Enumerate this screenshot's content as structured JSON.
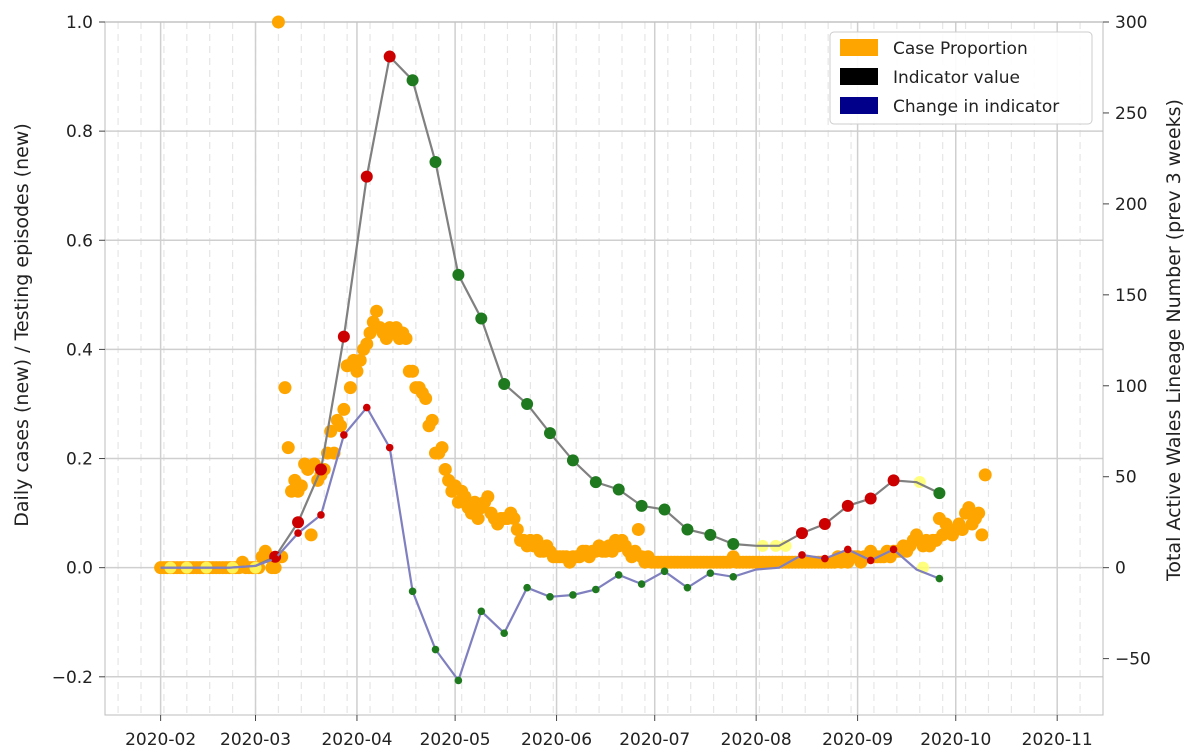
{
  "chart_data": {
    "type": "line",
    "ylabel_left": "Daily cases (new) / Testing episodes (new)",
    "ylabel_right": "Total Active Wales Lineage Number (prev 3 weeks)",
    "x_ticks": [
      "2020-02",
      "2020-03",
      "2020-04",
      "2020-05",
      "2020-06",
      "2020-07",
      "2020-08",
      "2020-09",
      "2020-10",
      "2020-11"
    ],
    "xlim": [
      "2020-01-15",
      "2020-11-15"
    ],
    "y_left_ticks": [
      "−0.2",
      "0.0",
      "0.2",
      "0.4",
      "0.6",
      "0.8",
      "1.0"
    ],
    "y_left_lim": [
      -0.27,
      1.0
    ],
    "y_right_ticks": [
      "−50",
      "0",
      "50",
      "100",
      "150",
      "200",
      "250",
      "300"
    ],
    "y_right_lim": [
      -81,
      300
    ],
    "grid": true,
    "legend_position": "top-right",
    "legend": [
      {
        "label": "Case Proportion",
        "color": "#ffa500"
      },
      {
        "label": "Indicator value",
        "color": "#000000"
      },
      {
        "label": "Change in indicator",
        "color": "#00008b"
      }
    ],
    "colors": {
      "case": "#ffa500",
      "yellow": "#ffff66",
      "indicator_line": "#808080",
      "change_line": "#8080c0",
      "red": "#cc0000",
      "green": "#1f7a1f",
      "grid": "#cfcfcf",
      "minor_grid": "#e6e6e6"
    },
    "case_proportion": [
      [
        "2020-02-01",
        0
      ],
      [
        "2020-02-02",
        0
      ],
      [
        "2020-02-03",
        0
      ],
      [
        "2020-02-04",
        0
      ],
      [
        "2020-02-05",
        0
      ],
      [
        "2020-02-06",
        0
      ],
      [
        "2020-02-07",
        0
      ],
      [
        "2020-02-08",
        0
      ],
      [
        "2020-02-09",
        0
      ],
      [
        "2020-02-10",
        0
      ],
      [
        "2020-02-11",
        0
      ],
      [
        "2020-02-12",
        0
      ],
      [
        "2020-02-13",
        0
      ],
      [
        "2020-02-14",
        0
      ],
      [
        "2020-02-15",
        0
      ],
      [
        "2020-02-16",
        0
      ],
      [
        "2020-02-17",
        0
      ],
      [
        "2020-02-18",
        0
      ],
      [
        "2020-02-19",
        0
      ],
      [
        "2020-02-20",
        0
      ],
      [
        "2020-02-21",
        0
      ],
      [
        "2020-02-22",
        0
      ],
      [
        "2020-02-23",
        0
      ],
      [
        "2020-02-24",
        0
      ],
      [
        "2020-02-25",
        0
      ],
      [
        "2020-02-26",
        0.01
      ],
      [
        "2020-02-27",
        0
      ],
      [
        "2020-02-28",
        0
      ],
      [
        "2020-02-29",
        0
      ],
      [
        "2020-03-01",
        0
      ],
      [
        "2020-03-02",
        0
      ],
      [
        "2020-03-03",
        0.02
      ],
      [
        "2020-03-04",
        0.03
      ],
      [
        "2020-03-05",
        0.02
      ],
      [
        "2020-03-06",
        0
      ],
      [
        "2020-03-07",
        0
      ],
      [
        "2020-03-08",
        1.0
      ],
      [
        "2020-03-09",
        0.02
      ],
      [
        "2020-03-10",
        0.33
      ],
      [
        "2020-03-11",
        0.22
      ],
      [
        "2020-03-12",
        0.14
      ],
      [
        "2020-03-13",
        0.16
      ],
      [
        "2020-03-14",
        0.14
      ],
      [
        "2020-03-15",
        0.15
      ],
      [
        "2020-03-16",
        0.19
      ],
      [
        "2020-03-17",
        0.18
      ],
      [
        "2020-03-18",
        0.06
      ],
      [
        "2020-03-19",
        0.19
      ],
      [
        "2020-03-20",
        0.16
      ],
      [
        "2020-03-21",
        0.17
      ],
      [
        "2020-03-22",
        0.18
      ],
      [
        "2020-03-23",
        0.21
      ],
      [
        "2020-03-24",
        0.25
      ],
      [
        "2020-03-25",
        0.21
      ],
      [
        "2020-03-26",
        0.27
      ],
      [
        "2020-03-27",
        0.26
      ],
      [
        "2020-03-28",
        0.29
      ],
      [
        "2020-03-29",
        0.37
      ],
      [
        "2020-03-30",
        0.33
      ],
      [
        "2020-03-31",
        0.38
      ],
      [
        "2020-04-01",
        0.36
      ],
      [
        "2020-04-02",
        0.38
      ],
      [
        "2020-04-03",
        0.4
      ],
      [
        "2020-04-04",
        0.41
      ],
      [
        "2020-04-05",
        0.43
      ],
      [
        "2020-04-06",
        0.45
      ],
      [
        "2020-04-07",
        0.47
      ],
      [
        "2020-04-08",
        0.44
      ],
      [
        "2020-04-09",
        0.43
      ],
      [
        "2020-04-10",
        0.42
      ],
      [
        "2020-04-11",
        0.44
      ],
      [
        "2020-04-12",
        0.43
      ],
      [
        "2020-04-13",
        0.44
      ],
      [
        "2020-04-14",
        0.42
      ],
      [
        "2020-04-15",
        0.43
      ],
      [
        "2020-04-16",
        0.42
      ],
      [
        "2020-04-17",
        0.36
      ],
      [
        "2020-04-18",
        0.36
      ],
      [
        "2020-04-19",
        0.33
      ],
      [
        "2020-04-20",
        0.33
      ],
      [
        "2020-04-21",
        0.32
      ],
      [
        "2020-04-22",
        0.31
      ],
      [
        "2020-04-23",
        0.26
      ],
      [
        "2020-04-24",
        0.27
      ],
      [
        "2020-04-25",
        0.21
      ],
      [
        "2020-04-26",
        0.21
      ],
      [
        "2020-04-27",
        0.22
      ],
      [
        "2020-04-28",
        0.18
      ],
      [
        "2020-04-29",
        0.16
      ],
      [
        "2020-04-30",
        0.14
      ],
      [
        "2020-05-01",
        0.15
      ],
      [
        "2020-05-02",
        0.12
      ],
      [
        "2020-05-03",
        0.14
      ],
      [
        "2020-05-04",
        0.13
      ],
      [
        "2020-05-05",
        0.11
      ],
      [
        "2020-05-06",
        0.1
      ],
      [
        "2020-05-07",
        0.12
      ],
      [
        "2020-05-08",
        0.09
      ],
      [
        "2020-05-09",
        0.11
      ],
      [
        "2020-05-10",
        0.12
      ],
      [
        "2020-05-11",
        0.13
      ],
      [
        "2020-05-12",
        0.1
      ],
      [
        "2020-05-13",
        0.09
      ],
      [
        "2020-05-14",
        0.08
      ],
      [
        "2020-05-15",
        0.09
      ],
      [
        "2020-05-16",
        0.09
      ],
      [
        "2020-05-17",
        0.09
      ],
      [
        "2020-05-18",
        0.1
      ],
      [
        "2020-05-19",
        0.09
      ],
      [
        "2020-05-20",
        0.07
      ],
      [
        "2020-05-21",
        0.05
      ],
      [
        "2020-05-22",
        0.05
      ],
      [
        "2020-05-23",
        0.04
      ],
      [
        "2020-05-24",
        0.05
      ],
      [
        "2020-05-25",
        0.04
      ],
      [
        "2020-05-26",
        0.05
      ],
      [
        "2020-05-27",
        0.03
      ],
      [
        "2020-05-28",
        0.03
      ],
      [
        "2020-05-29",
        0.04
      ],
      [
        "2020-05-30",
        0.03
      ],
      [
        "2020-05-31",
        0.02
      ],
      [
        "2020-06-01",
        0.02
      ],
      [
        "2020-06-02",
        0.02
      ],
      [
        "2020-06-03",
        0.02
      ],
      [
        "2020-06-04",
        0.02
      ],
      [
        "2020-06-05",
        0.01
      ],
      [
        "2020-06-06",
        0.02
      ],
      [
        "2020-06-07",
        0.02
      ],
      [
        "2020-06-08",
        0.02
      ],
      [
        "2020-06-09",
        0.03
      ],
      [
        "2020-06-10",
        0.03
      ],
      [
        "2020-06-11",
        0.02
      ],
      [
        "2020-06-12",
        0.03
      ],
      [
        "2020-06-13",
        0.03
      ],
      [
        "2020-06-14",
        0.04
      ],
      [
        "2020-06-15",
        0.03
      ],
      [
        "2020-06-16",
        0.03
      ],
      [
        "2020-06-17",
        0.04
      ],
      [
        "2020-06-18",
        0.03
      ],
      [
        "2020-06-19",
        0.05
      ],
      [
        "2020-06-20",
        0.04
      ],
      [
        "2020-06-21",
        0.05
      ],
      [
        "2020-06-22",
        0.04
      ],
      [
        "2020-06-23",
        0.03
      ],
      [
        "2020-06-24",
        0.02
      ],
      [
        "2020-06-25",
        0.03
      ],
      [
        "2020-06-26",
        0.07
      ],
      [
        "2020-06-27",
        0.02
      ],
      [
        "2020-06-28",
        0.01
      ],
      [
        "2020-06-29",
        0.02
      ],
      [
        "2020-06-30",
        0.01
      ],
      [
        "2020-07-01",
        0.01
      ],
      [
        "2020-07-02",
        0.01
      ],
      [
        "2020-07-03",
        0.01
      ],
      [
        "2020-07-04",
        0.01
      ],
      [
        "2020-07-05",
        0.01
      ],
      [
        "2020-07-06",
        0.01
      ],
      [
        "2020-07-07",
        0.01
      ],
      [
        "2020-07-08",
        0.01
      ],
      [
        "2020-07-09",
        0.01
      ],
      [
        "2020-07-10",
        0.01
      ],
      [
        "2020-07-11",
        0.01
      ],
      [
        "2020-07-12",
        0.01
      ],
      [
        "2020-07-13",
        0.01
      ],
      [
        "2020-07-14",
        0.01
      ],
      [
        "2020-07-15",
        0.01
      ],
      [
        "2020-07-16",
        0.01
      ],
      [
        "2020-07-17",
        0.01
      ],
      [
        "2020-07-18",
        0.01
      ],
      [
        "2020-07-19",
        0.01
      ],
      [
        "2020-07-20",
        0.01
      ],
      [
        "2020-07-21",
        0.01
      ],
      [
        "2020-07-22",
        0.01
      ],
      [
        "2020-07-23",
        0.01
      ],
      [
        "2020-07-24",
        0.01
      ],
      [
        "2020-07-25",
        0.02
      ],
      [
        "2020-07-26",
        0.01
      ],
      [
        "2020-07-27",
        0.01
      ],
      [
        "2020-07-28",
        0.01
      ],
      [
        "2020-07-29",
        0.01
      ],
      [
        "2020-07-30",
        0.01
      ],
      [
        "2020-07-31",
        0.01
      ],
      [
        "2020-08-01",
        0.01
      ],
      [
        "2020-08-02",
        0.01
      ],
      [
        "2020-08-03",
        0.01
      ],
      [
        "2020-08-04",
        0.01
      ],
      [
        "2020-08-05",
        0.01
      ],
      [
        "2020-08-06",
        0.01
      ],
      [
        "2020-08-07",
        0.01
      ],
      [
        "2020-08-08",
        0.01
      ],
      [
        "2020-08-09",
        0.01
      ],
      [
        "2020-08-10",
        0.01
      ],
      [
        "2020-08-11",
        0.01
      ],
      [
        "2020-08-12",
        0.01
      ],
      [
        "2020-08-13",
        0.01
      ],
      [
        "2020-08-14",
        0.01
      ],
      [
        "2020-08-15",
        0.01
      ],
      [
        "2020-08-16",
        0.01
      ],
      [
        "2020-08-17",
        0.01
      ],
      [
        "2020-08-18",
        0.01
      ],
      [
        "2020-08-19",
        0.01
      ],
      [
        "2020-08-20",
        0.01
      ],
      [
        "2020-08-21",
        0.01
      ],
      [
        "2020-08-22",
        0.01
      ],
      [
        "2020-08-23",
        0.01
      ],
      [
        "2020-08-24",
        0.01
      ],
      [
        "2020-08-25",
        0.01
      ],
      [
        "2020-08-26",
        0.02
      ],
      [
        "2020-08-27",
        0.01
      ],
      [
        "2020-08-28",
        0.02
      ],
      [
        "2020-08-29",
        0.01
      ],
      [
        "2020-08-30",
        0.02
      ],
      [
        "2020-08-31",
        0.02
      ],
      [
        "2020-09-01",
        0.02
      ],
      [
        "2020-09-02",
        0.01
      ],
      [
        "2020-09-03",
        0.02
      ],
      [
        "2020-09-04",
        0.02
      ],
      [
        "2020-09-05",
        0.03
      ],
      [
        "2020-09-06",
        0.02
      ],
      [
        "2020-09-07",
        0.02
      ],
      [
        "2020-09-08",
        0.02
      ],
      [
        "2020-09-09",
        0.02
      ],
      [
        "2020-09-10",
        0.03
      ],
      [
        "2020-09-11",
        0.02
      ],
      [
        "2020-09-12",
        0.03
      ],
      [
        "2020-09-13",
        0.03
      ],
      [
        "2020-09-14",
        0.03
      ],
      [
        "2020-09-15",
        0.04
      ],
      [
        "2020-09-16",
        0.03
      ],
      [
        "2020-09-17",
        0.04
      ],
      [
        "2020-09-18",
        0.05
      ],
      [
        "2020-09-19",
        0.06
      ],
      [
        "2020-09-20",
        0.05
      ],
      [
        "2020-09-21",
        0.04
      ],
      [
        "2020-09-22",
        0.05
      ],
      [
        "2020-09-23",
        0.04
      ],
      [
        "2020-09-24",
        0.05
      ],
      [
        "2020-09-25",
        0.05
      ],
      [
        "2020-09-26",
        0.09
      ],
      [
        "2020-09-27",
        0.06
      ],
      [
        "2020-09-28",
        0.08
      ],
      [
        "2020-09-29",
        0.07
      ],
      [
        "2020-09-30",
        0.06
      ],
      [
        "2020-10-01",
        0.07
      ],
      [
        "2020-10-02",
        0.08
      ],
      [
        "2020-10-03",
        0.07
      ],
      [
        "2020-10-04",
        0.1
      ],
      [
        "2020-10-05",
        0.11
      ],
      [
        "2020-10-06",
        0.08
      ],
      [
        "2020-10-07",
        0.09
      ],
      [
        "2020-10-08",
        0.1
      ],
      [
        "2020-10-09",
        0.06
      ],
      [
        "2020-10-10",
        0.17
      ]
    ],
    "case_yellow": [
      [
        "2020-02-04",
        0
      ],
      [
        "2020-02-09",
        0
      ],
      [
        "2020-02-15",
        0
      ],
      [
        "2020-02-23",
        0
      ],
      [
        "2020-03-01",
        0
      ],
      [
        "2020-09-20",
        0.157
      ],
      [
        "2020-09-21",
        0.0
      ],
      [
        "2020-08-03",
        0.04
      ],
      [
        "2020-08-07",
        0.04
      ],
      [
        "2020-08-10",
        0.04
      ]
    ],
    "indicator_value": [
      [
        "2020-02-01",
        0,
        "none"
      ],
      [
        "2020-02-08",
        0,
        "none"
      ],
      [
        "2020-02-15",
        0,
        "none"
      ],
      [
        "2020-02-22",
        0,
        "none"
      ],
      [
        "2020-03-01",
        1,
        "none"
      ],
      [
        "2020-03-07",
        6,
        "red"
      ],
      [
        "2020-03-14",
        25,
        "red"
      ],
      [
        "2020-03-21",
        54,
        "red"
      ],
      [
        "2020-03-28",
        127,
        "red"
      ],
      [
        "2020-04-04",
        215,
        "red"
      ],
      [
        "2020-04-11",
        281,
        "red"
      ],
      [
        "2020-04-18",
        268,
        "green"
      ],
      [
        "2020-04-25",
        223,
        "green"
      ],
      [
        "2020-05-02",
        161,
        "green"
      ],
      [
        "2020-05-09",
        137,
        "green"
      ],
      [
        "2020-05-16",
        101,
        "green"
      ],
      [
        "2020-05-23",
        90,
        "green"
      ],
      [
        "2020-05-30",
        74,
        "green"
      ],
      [
        "2020-06-06",
        59,
        "green"
      ],
      [
        "2020-06-13",
        47,
        "green"
      ],
      [
        "2020-06-20",
        43,
        "green"
      ],
      [
        "2020-06-27",
        34,
        "green"
      ],
      [
        "2020-07-04",
        32,
        "green"
      ],
      [
        "2020-07-11",
        21,
        "green"
      ],
      [
        "2020-07-18",
        18,
        "green"
      ],
      [
        "2020-07-25",
        13,
        "green"
      ],
      [
        "2020-08-01",
        12,
        "none"
      ],
      [
        "2020-08-08",
        12,
        "none"
      ],
      [
        "2020-08-15",
        19,
        "red"
      ],
      [
        "2020-08-22",
        24,
        "red"
      ],
      [
        "2020-08-29",
        34,
        "red"
      ],
      [
        "2020-09-05",
        38,
        "red"
      ],
      [
        "2020-09-12",
        48,
        "red"
      ],
      [
        "2020-09-19",
        47,
        "none"
      ],
      [
        "2020-09-26",
        41,
        "green"
      ]
    ],
    "change_in_indicator": [
      [
        "2020-02-01",
        0,
        "none"
      ],
      [
        "2020-02-08",
        0,
        "none"
      ],
      [
        "2020-02-15",
        0,
        "none"
      ],
      [
        "2020-02-22",
        0,
        "none"
      ],
      [
        "2020-03-01",
        1,
        "none"
      ],
      [
        "2020-03-07",
        5,
        "red"
      ],
      [
        "2020-03-14",
        19,
        "red"
      ],
      [
        "2020-03-21",
        29,
        "red"
      ],
      [
        "2020-03-28",
        73,
        "red"
      ],
      [
        "2020-04-04",
        88,
        "red"
      ],
      [
        "2020-04-11",
        66,
        "red"
      ],
      [
        "2020-04-18",
        -13,
        "green"
      ],
      [
        "2020-04-25",
        -45,
        "green"
      ],
      [
        "2020-05-02",
        -62,
        "green"
      ],
      [
        "2020-05-09",
        -24,
        "green"
      ],
      [
        "2020-05-16",
        -36,
        "green"
      ],
      [
        "2020-05-23",
        -11,
        "green"
      ],
      [
        "2020-05-30",
        -16,
        "green"
      ],
      [
        "2020-06-06",
        -15,
        "green"
      ],
      [
        "2020-06-13",
        -12,
        "green"
      ],
      [
        "2020-06-20",
        -4,
        "green"
      ],
      [
        "2020-06-27",
        -9,
        "green"
      ],
      [
        "2020-07-04",
        -2,
        "green"
      ],
      [
        "2020-07-11",
        -11,
        "green"
      ],
      [
        "2020-07-18",
        -3,
        "green"
      ],
      [
        "2020-07-25",
        -5,
        "green"
      ],
      [
        "2020-08-01",
        -1,
        "none"
      ],
      [
        "2020-08-08",
        0,
        "none"
      ],
      [
        "2020-08-15",
        7,
        "red"
      ],
      [
        "2020-08-22",
        5,
        "red"
      ],
      [
        "2020-08-29",
        10,
        "red"
      ],
      [
        "2020-09-05",
        4,
        "red"
      ],
      [
        "2020-09-12",
        10,
        "red"
      ],
      [
        "2020-09-19",
        -1,
        "none"
      ],
      [
        "2020-09-26",
        -6,
        "green"
      ]
    ]
  }
}
